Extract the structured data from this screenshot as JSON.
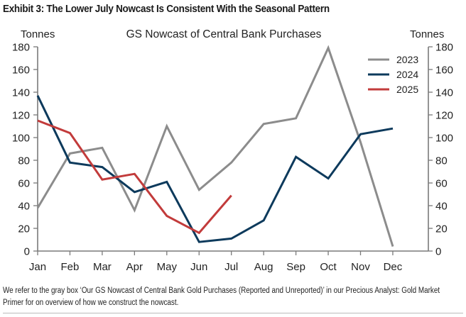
{
  "exhibit_title": "Exhibit 3: The Lower July Nowcast Is Consistent With the Seasonal Pattern",
  "footnote": "We refer to the gray box ‘Our GS Nowcast of Central Bank Gold Purchases (Reported and Unreported)’ in our Precious Analyst: Gold Market Primer for on overview of how we construct the nowcast.",
  "chart_data": {
    "type": "line",
    "title": "GS Nowcast of Central Bank Purchases",
    "ylabel_left": "Tonnes",
    "ylabel_right": "Tonnes",
    "xlabel": "",
    "categories": [
      "Jan",
      "Feb",
      "Mar",
      "Apr",
      "May",
      "Jun",
      "Jul",
      "Aug",
      "Sep",
      "Oct",
      "Nov",
      "Dec"
    ],
    "ylim": [
      0,
      180
    ],
    "yticks": [
      0,
      20,
      40,
      60,
      80,
      100,
      120,
      140,
      160,
      180
    ],
    "grid": false,
    "legend_position": "top-right",
    "series": [
      {
        "name": "2023",
        "color": "#8c8c8c",
        "values": [
          38,
          86,
          91,
          36,
          110,
          54,
          78,
          112,
          117,
          179,
          96,
          4
        ]
      },
      {
        "name": "2024",
        "color": "#0d3a5c",
        "values": [
          137,
          78,
          74,
          52,
          61,
          8,
          11,
          27,
          83,
          64,
          103,
          108
        ]
      },
      {
        "name": "2025",
        "color": "#c23b3b",
        "values": [
          115,
          104,
          63,
          68,
          31,
          16,
          49,
          null,
          null,
          null,
          null,
          null
        ]
      }
    ]
  }
}
